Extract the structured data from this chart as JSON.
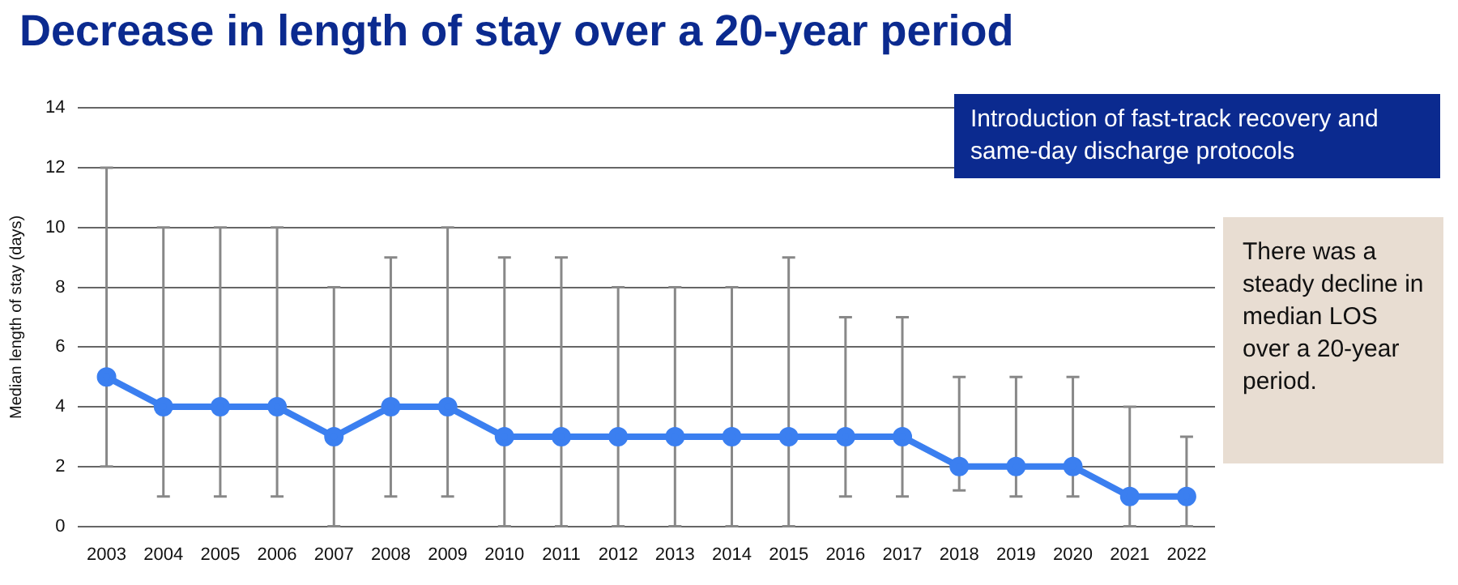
{
  "chart_data": {
    "type": "line",
    "title": "Decrease in length of stay over a 20-year period",
    "ylabel": "Median length of stay (days)",
    "categories": [
      "2003",
      "2004",
      "2005",
      "2006",
      "2007",
      "2008",
      "2009",
      "2010",
      "2011",
      "2012",
      "2013",
      "2014",
      "2015",
      "2016",
      "2017",
      "2018",
      "2019",
      "2020",
      "2021",
      "2022"
    ],
    "series": [
      {
        "color": "#3b7ff0",
        "values": [
          5,
          4,
          4,
          4,
          3,
          4,
          4,
          3,
          3,
          3,
          3,
          3,
          3,
          3,
          3,
          2,
          2,
          2,
          1,
          1
        ],
        "errors": [
          [
            2,
            12
          ],
          [
            1,
            10
          ],
          [
            1,
            10
          ],
          [
            1,
            10
          ],
          [
            0,
            8
          ],
          [
            1,
            9
          ],
          [
            1,
            10
          ],
          [
            0,
            9
          ],
          [
            0,
            9
          ],
          [
            0,
            8
          ],
          [
            0,
            8
          ],
          [
            0,
            8
          ],
          [
            0,
            9
          ],
          [
            1,
            7
          ],
          [
            1,
            7
          ],
          [
            1.2,
            5
          ],
          [
            1,
            5
          ],
          [
            1,
            5
          ],
          [
            0,
            4
          ],
          [
            0,
            3
          ]
        ]
      }
    ],
    "ylim": [
      0,
      14
    ],
    "yticks": [
      0,
      2,
      4,
      6,
      8,
      10,
      12,
      14
    ],
    "grid": "y",
    "legend": false,
    "marker": "circle",
    "line_style": "solid",
    "annotations": [
      "Introduction of fast-track recovery and same-day discharge protocols",
      "There was a steady decline in median LOS over a 20-year period."
    ]
  }
}
